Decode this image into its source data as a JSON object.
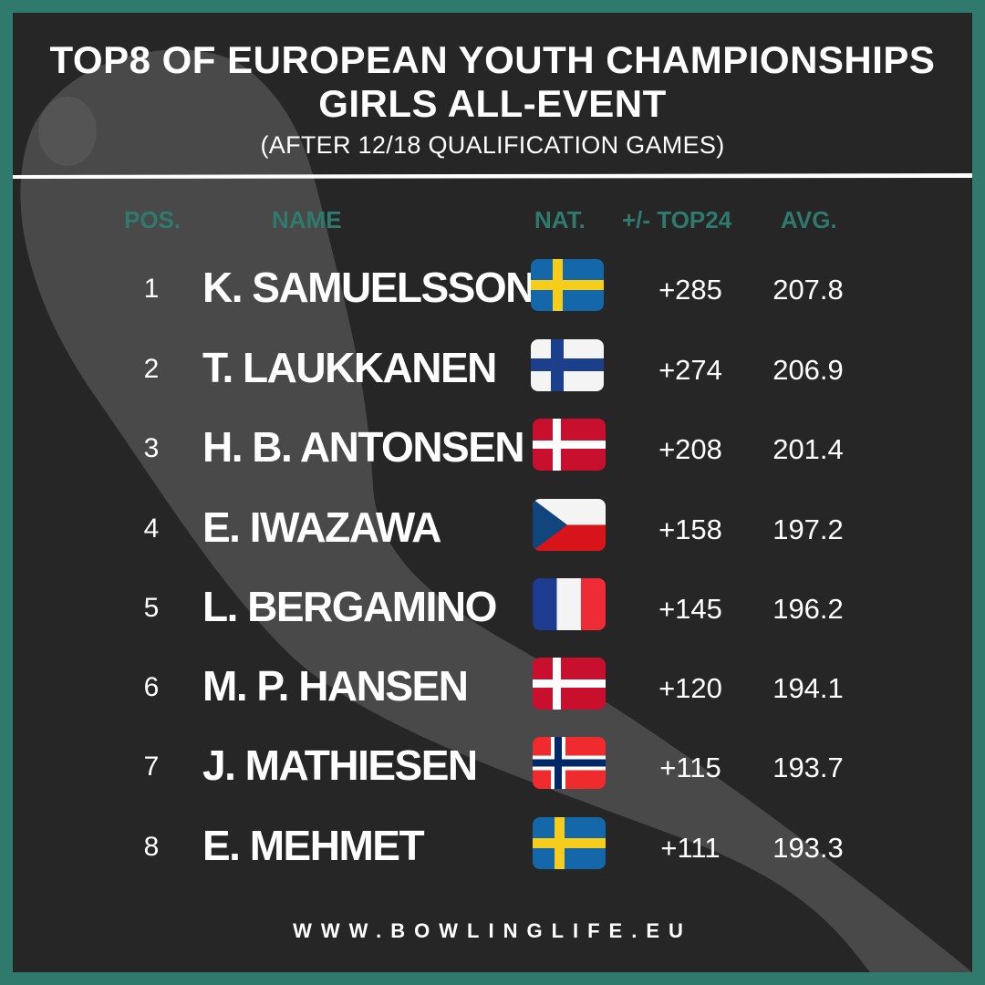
{
  "header": {
    "title_line1": "TOP8 OF EUROPEAN YOUTH CHAMPIONSHIPS",
    "title_line2": "GIRLS ALL-EVENT",
    "subtitle": "(AFTER 12/18 QUALIFICATION GAMES)"
  },
  "columns": {
    "pos": "POS.",
    "name": "NAME",
    "nat": "NAT.",
    "diff": "+/- TOP24",
    "avg": "AVG."
  },
  "rows": [
    {
      "pos": "1",
      "name": "K. SAMUELSSON",
      "nat": "sweden-flag",
      "diff": "+285",
      "avg": "207.8"
    },
    {
      "pos": "2",
      "name": "T. LAUKKANEN",
      "nat": "finland-flag",
      "diff": "+274",
      "avg": "206.9"
    },
    {
      "pos": "3",
      "name": "H. B. ANTONSEN",
      "nat": "denmark-flag",
      "diff": "+208",
      "avg": "201.4"
    },
    {
      "pos": "4",
      "name": "E. IWAZAWA",
      "nat": "czech-flag",
      "diff": "+158",
      "avg": "197.2"
    },
    {
      "pos": "5",
      "name": "L. BERGAMINO",
      "nat": "france-flag",
      "diff": "+145",
      "avg": "196.2"
    },
    {
      "pos": "6",
      "name": "M. P. HANSEN",
      "nat": "denmark-flag",
      "diff": "+120",
      "avg": "194.1"
    },
    {
      "pos": "7",
      "name": "J. MATHIESEN",
      "nat": "norway-flag",
      "diff": "+115",
      "avg": "193.7"
    },
    {
      "pos": "8",
      "name": "E. MEHMET",
      "nat": "sweden-flag",
      "diff": "+111",
      "avg": "193.3"
    }
  ],
  "footer": {
    "website": "WWW.BOWLINGLIFE.EU"
  },
  "colors": {
    "border": "#2f7a6c",
    "background": "#262626",
    "header_text": "#2f7a6c",
    "text": "#ffffff"
  }
}
